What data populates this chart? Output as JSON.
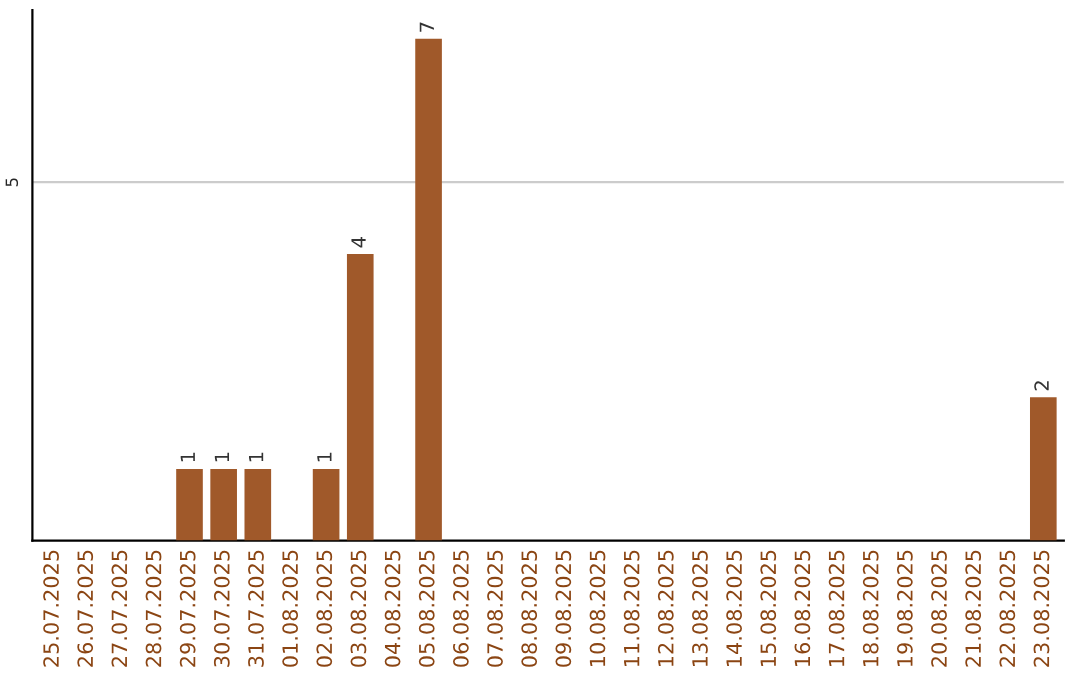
{
  "chart_data": {
    "type": "bar",
    "categories": [
      "25.07.2025",
      "26.07.2025",
      "27.07.2025",
      "28.07.2025",
      "29.07.2025",
      "30.07.2025",
      "31.07.2025",
      "01.08.2025",
      "02.08.2025",
      "03.08.2025",
      "04.08.2025",
      "05.08.2025",
      "06.08.2025",
      "07.08.2025",
      "08.08.2025",
      "09.08.2025",
      "10.08.2025",
      "11.08.2025",
      "12.08.2025",
      "13.08.2025",
      "14.08.2025",
      "15.08.2025",
      "16.08.2025",
      "17.08.2025",
      "18.08.2025",
      "19.08.2025",
      "20.08.2025",
      "21.08.2025",
      "22.08.2025",
      "23.08.2025"
    ],
    "values": [
      0,
      0,
      0,
      0,
      1,
      1,
      1,
      0,
      1,
      4,
      0,
      7,
      0,
      0,
      0,
      0,
      0,
      0,
      0,
      0,
      0,
      0,
      0,
      0,
      0,
      0,
      0,
      0,
      0,
      2
    ],
    "value_labels": [
      null,
      null,
      null,
      null,
      "1",
      "1",
      "1",
      null,
      "1",
      "4",
      null,
      "7",
      null,
      null,
      null,
      null,
      null,
      null,
      null,
      null,
      null,
      null,
      null,
      null,
      null,
      null,
      null,
      null,
      null,
      "2"
    ],
    "color": "#a0592a",
    "ylim": [
      0,
      7.4
    ],
    "yticks": [
      5
    ],
    "grid": "y"
  }
}
